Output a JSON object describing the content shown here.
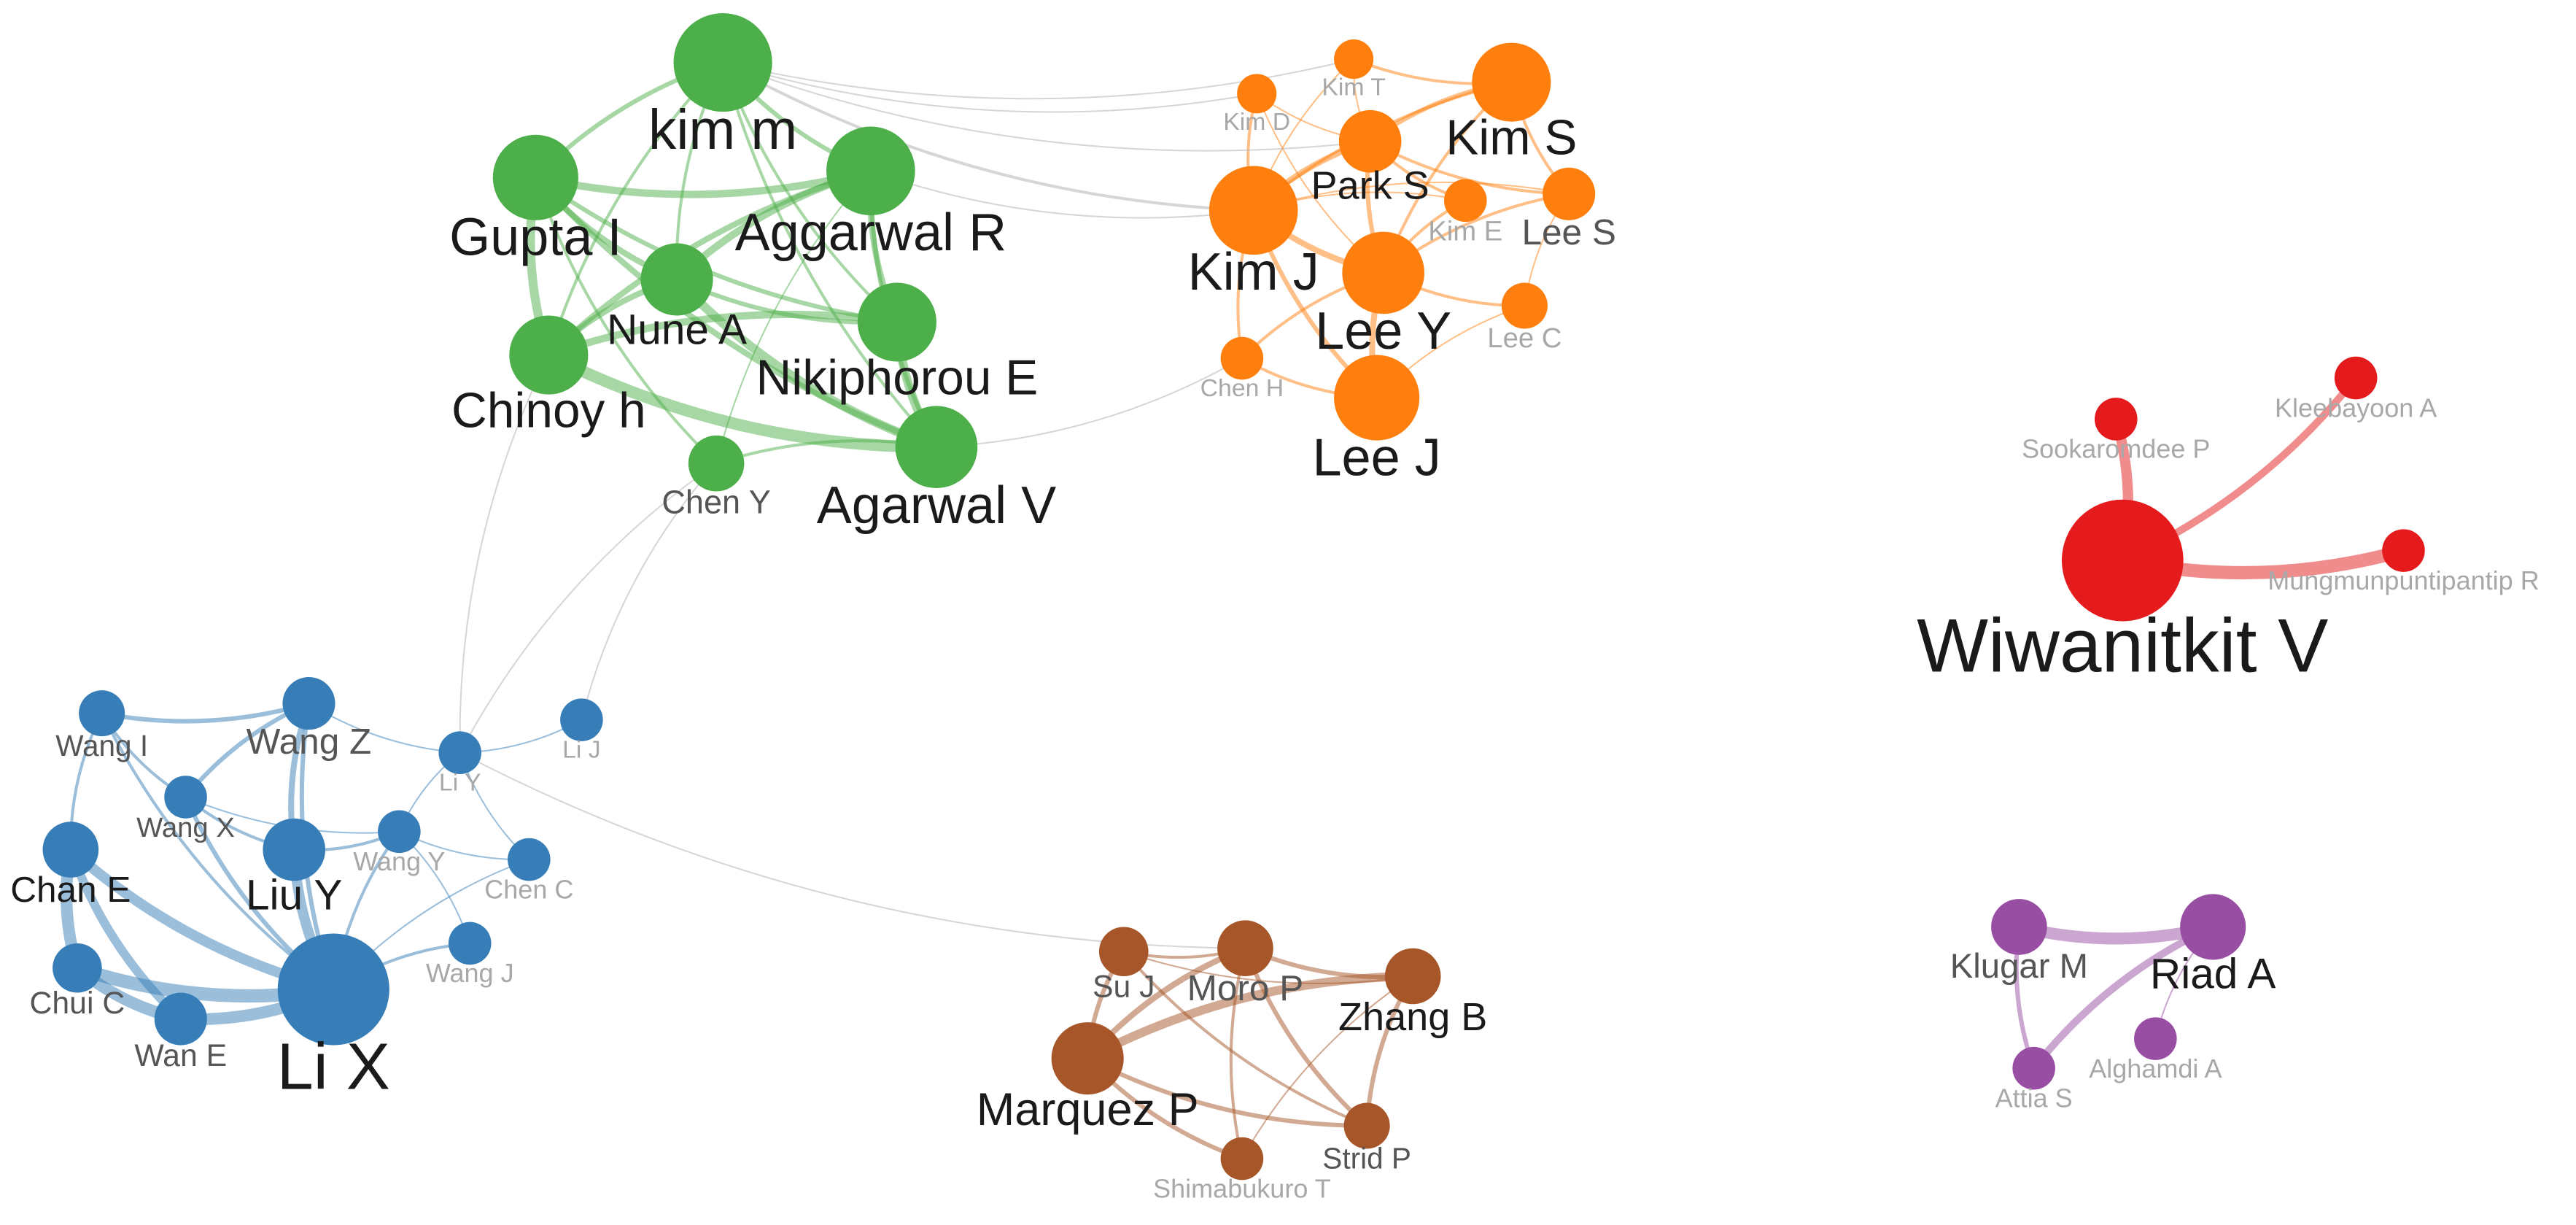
{
  "nodes": [
    {
      "label": "kim m"
    },
    {
      "label": "Gupta I"
    },
    {
      "label": "Aggarwal R"
    },
    {
      "label": "Nune A"
    },
    {
      "label": "Nikiphorou E"
    },
    {
      "label": "Chinoy h"
    },
    {
      "label": "Agarwal V"
    },
    {
      "label": "Chen Y"
    },
    {
      "label": "Kim T"
    },
    {
      "label": "Kim D"
    },
    {
      "label": "Kim S"
    },
    {
      "label": "Park S"
    },
    {
      "label": "Lee S"
    },
    {
      "label": "Kim E"
    },
    {
      "label": "Kim J"
    },
    {
      "label": "Lee Y"
    },
    {
      "label": "Lee C"
    },
    {
      "label": "Chen H"
    },
    {
      "label": "Lee J"
    },
    {
      "label": "Wiwanitkit V"
    },
    {
      "label": "Sookaromdee P"
    },
    {
      "label": "Kleebayoon A"
    },
    {
      "label": "Mungmunpuntipantip R"
    },
    {
      "label": "Wang I"
    },
    {
      "label": "Wang Z"
    },
    {
      "label": "Li Y"
    },
    {
      "label": "Li J"
    },
    {
      "label": "Wang X"
    },
    {
      "label": "Wang Y"
    },
    {
      "label": "Chen C"
    },
    {
      "label": "Chan E"
    },
    {
      "label": "Liu Y"
    },
    {
      "label": "Chui C"
    },
    {
      "label": "Wang J"
    },
    {
      "label": "Wan E"
    },
    {
      "label": "Li X"
    },
    {
      "label": "Su J"
    },
    {
      "label": "Moro P"
    },
    {
      "label": "Zhang B"
    },
    {
      "label": "Marquez P"
    },
    {
      "label": "Strid P"
    },
    {
      "label": "Shimabukuro T"
    },
    {
      "label": "Klugar M"
    },
    {
      "label": "Riad A"
    },
    {
      "label": "Alghamdi A"
    },
    {
      "label": "Attia S"
    }
  ]
}
